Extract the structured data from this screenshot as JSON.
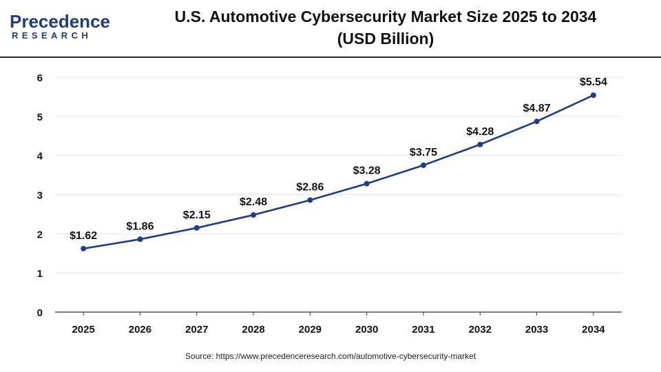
{
  "logo": {
    "main": "Precedence",
    "sub": "RESEARCH"
  },
  "header": {
    "title_line1": "U.S. Automotive Cybersecurity Market Size 2025 to 2034",
    "title_line2": "(USD Billion)"
  },
  "source": "Source: https://www.precedenceresearch.com/automotive-cybersecurity-market",
  "colors": {
    "line": "#1f3a93",
    "grid": "#e3e3e3",
    "axis": "#333333"
  },
  "chart_data": {
    "type": "line",
    "title": "U.S. Automotive Cybersecurity Market Size 2025 to 2034 (USD Billion)",
    "xlabel": "",
    "ylabel": "",
    "categories": [
      "2025",
      "2026",
      "2027",
      "2028",
      "2029",
      "2030",
      "2031",
      "2032",
      "2033",
      "2034"
    ],
    "values": [
      1.62,
      1.86,
      2.15,
      2.48,
      2.86,
      3.28,
      3.75,
      4.28,
      4.87,
      5.54
    ],
    "data_labels": [
      "$1.62",
      "$1.86",
      "$2.15",
      "$2.48",
      "$2.86",
      "$3.28",
      "$3.75",
      "$4.28",
      "$4.87",
      "$5.54"
    ],
    "y_ticks": [
      0,
      1,
      2,
      3,
      4,
      5,
      6
    ],
    "ylim": [
      0,
      6
    ],
    "grid": true,
    "legend": "none"
  }
}
